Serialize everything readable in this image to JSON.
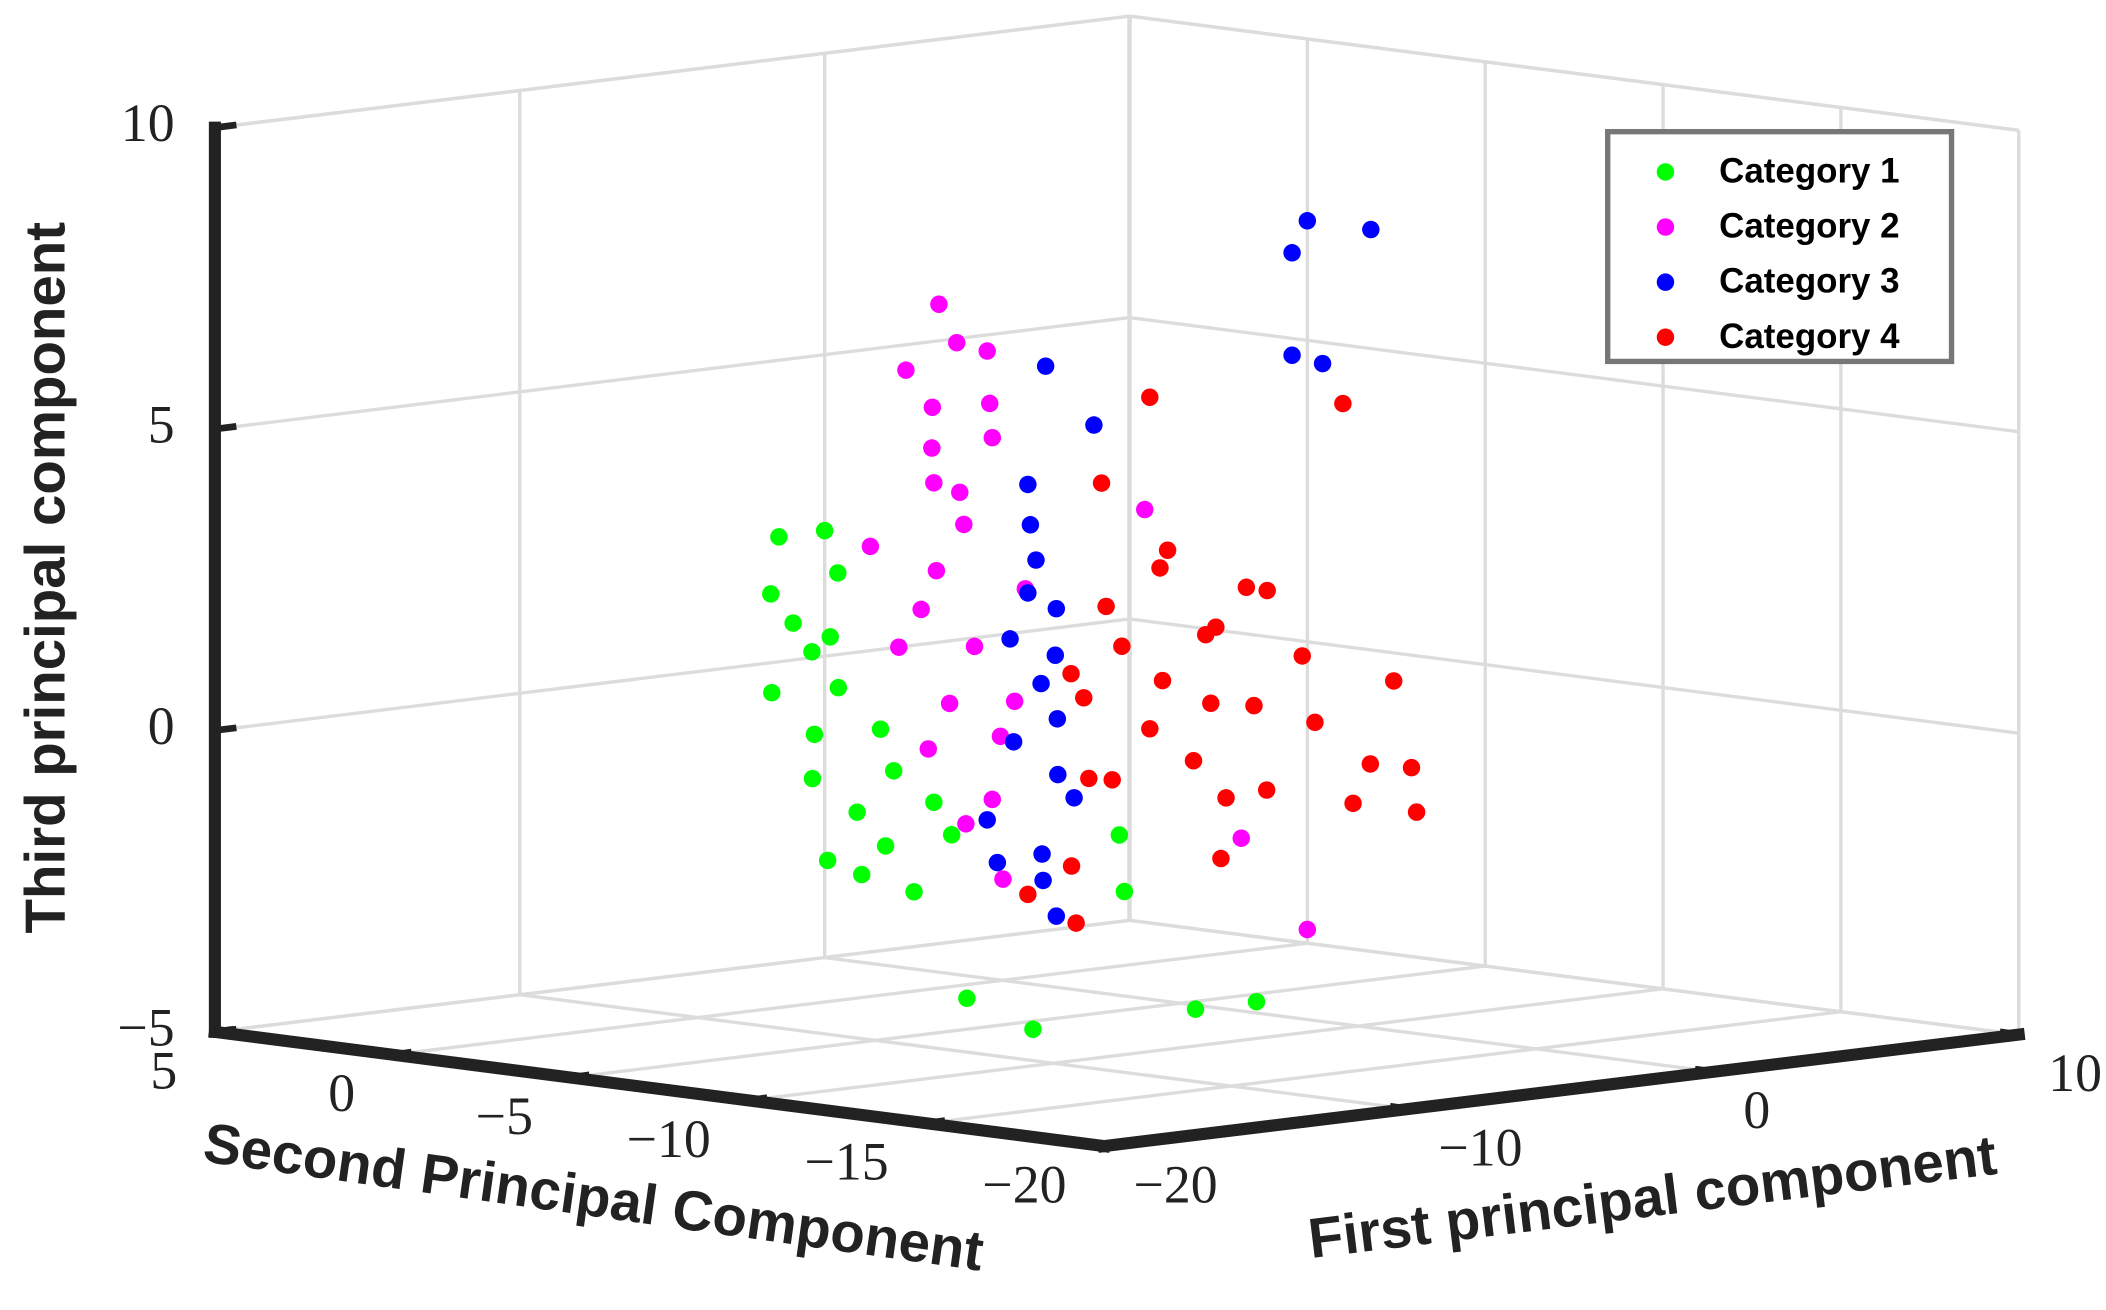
{
  "chart_data": {
    "type": "scatter3d",
    "xlabel": "First principal component",
    "ylabel": "Second Principal Component",
    "zlabel": "Third principal component",
    "xlim": [
      -20,
      10
    ],
    "ylim": [
      -20,
      5
    ],
    "zlim": [
      -5,
      10
    ],
    "xticks": [
      {
        "value": -20,
        "label": "−20"
      },
      {
        "value": -10,
        "label": "−10"
      },
      0,
      10
    ],
    "yticks": [
      5,
      0,
      {
        "value": -5,
        "label": "−5"
      },
      {
        "value": -10,
        "label": "−10"
      },
      {
        "value": -15,
        "label": "−15"
      },
      {
        "value": -20,
        "label": "−20"
      }
    ],
    "zticks": [
      {
        "value": -5,
        "label": "−5"
      },
      0,
      5,
      10
    ],
    "grid": true,
    "legend": "upper right",
    "series": [
      {
        "name": "Category 1",
        "color": "#00ff00",
        "x": [
          -12,
          -12.5,
          -11.5,
          -12,
          -11,
          -12,
          -11.8,
          -12.3,
          -11,
          -12,
          -11.5,
          -12,
          -11,
          -12.5,
          -11.2,
          -12,
          -11.6,
          -12.2,
          -11,
          -12,
          -14,
          -13,
          -10,
          -9,
          -8,
          -10
        ],
        "y": [
          -4,
          -4.2,
          -4.5,
          -3.8,
          -4.8,
          -5,
          -5.5,
          -5.2,
          -6,
          -6.2,
          -6.8,
          -7,
          -7.5,
          -5.8,
          -4.6,
          -4.4,
          -5.1,
          -6.5,
          -8,
          -7.8,
          -11,
          -12,
          -12,
          -11,
          -14,
          -14
        ],
        "z": [
          3.4,
          2.5,
          1.5,
          0.8,
          2.8,
          0.2,
          1.0,
          -0.5,
          0.3,
          -1.0,
          -0.3,
          -1.5,
          -0.8,
          -1.8,
          3.5,
          2.0,
          1.8,
          -2.0,
          -1.3,
          -2.2,
          -3.6,
          -4.1,
          -2.0,
          -1.2,
          -3.8,
          -3.8
        ]
      },
      {
        "name": "Category 2",
        "color": "#ff00ff",
        "x": [
          -12,
          -12,
          -12.5,
          -11.5,
          -12,
          -12,
          -11,
          -12,
          -12.5,
          -11.5,
          -12,
          -12,
          -11.8,
          -12.2,
          -12,
          -11.5,
          -12,
          -12,
          -11.7,
          -12,
          -12.2,
          -11.4,
          -12.6,
          -11,
          -7,
          -5,
          -4
        ],
        "y": [
          -8.5,
          -9,
          -8,
          -9.5,
          -8.3,
          -10,
          -7.5,
          -9.2,
          -7,
          -10.5,
          -8,
          -9.5,
          -7.2,
          -10.8,
          -8.8,
          -9.8,
          -8.2,
          -10,
          -9,
          -10.3,
          -8.6,
          -7.8,
          -9.6,
          -9,
          -10,
          -11,
          -12
        ],
        "z": [
          7.6,
          7.0,
          6.5,
          6.0,
          5.2,
          5.5,
          4.5,
          4.0,
          3.5,
          3.0,
          2.5,
          2.0,
          1.8,
          1.2,
          1.0,
          0.5,
          0.2,
          -0.5,
          -1.0,
          -1.8,
          3.2,
          5.8,
          4.6,
          6.8,
          4.0,
          -1.5,
          -3.0
        ]
      },
      {
        "name": "Category 3",
        "color": "#0000ff",
        "x": [
          -12,
          -12.5,
          -11.5,
          -12,
          -12,
          -11.8,
          -12.2,
          -12,
          -11.6,
          -12,
          -12.4,
          -12,
          -11.5,
          -12,
          -12.3,
          -11.8,
          -12,
          -11,
          -12,
          -8,
          -7.5,
          -6,
          -8,
          -7
        ],
        "y": [
          -11,
          -11.5,
          -10.8,
          -11.8,
          -10.5,
          -11.2,
          -12,
          -10.6,
          -11.5,
          -12.3,
          -10.2,
          -11.4,
          -11,
          -11.8,
          -10.4,
          -11.6,
          -11,
          -12,
          -11.5,
          -15,
          -15,
          -15.5,
          -15,
          -15
        ],
        "z": [
          4.8,
          4.2,
          3.5,
          2.8,
          2.2,
          1.5,
          1.0,
          0.5,
          0.0,
          -0.3,
          -0.8,
          -1.3,
          -1.8,
          -2.3,
          -1.5,
          2.0,
          3.0,
          5.8,
          6.8,
          8.7,
          9.2,
          9.0,
          7.0,
          6.8
        ]
      },
      {
        "name": "Category 4",
        "color": "#ff0000",
        "x": [
          -10,
          -9,
          -8,
          -9.5,
          -8.5,
          -7,
          -6,
          -7.5,
          -9,
          -5,
          -4,
          -6.5,
          -8,
          -3,
          -2,
          -1,
          0,
          -5.5,
          -10,
          -7,
          -4.5,
          -2.5,
          0,
          -1,
          -3,
          -9,
          -4,
          -8,
          -6,
          -11,
          -12,
          -11.5,
          -8
        ],
        "y": [
          -10.5,
          -10,
          -11,
          -11.5,
          -10.2,
          -10.5,
          -11,
          -11.8,
          -10.8,
          -10,
          -10.5,
          -10,
          -11.5,
          -11,
          -10.5,
          -11.2,
          -11,
          -11,
          -11,
          -12,
          -11.3,
          -12,
          -11.5,
          -12.5,
          -10,
          -10.5,
          -13,
          -11,
          -12,
          -11.5,
          -11,
          -11.8,
          -13
        ],
        "z": [
          1.5,
          1.0,
          0.5,
          2.0,
          2.5,
          1.2,
          0.8,
          0.0,
          -0.3,
          1.8,
          0.6,
          3.0,
          3.5,
          1.4,
          0.2,
          -0.5,
          0.8,
          -0.8,
          -0.2,
          2.2,
          2.6,
          -1.0,
          -0.6,
          -1.2,
          -0.9,
          4.6,
          5.8,
          6.0,
          2.8,
          -2.5,
          -2.0,
          -1.5,
          -1.5
        ]
      }
    ]
  }
}
